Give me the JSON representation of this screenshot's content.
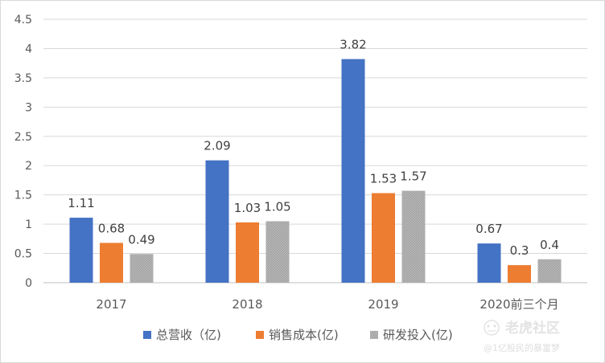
{
  "chart_data": {
    "type": "bar",
    "title": "",
    "xlabel": "",
    "ylabel": "",
    "categories": [
      "2017",
      "2018",
      "2019",
      "2020前三个月"
    ],
    "series": [
      {
        "name": "总营收（亿)",
        "color": "#4472c4",
        "values": [
          1.11,
          2.09,
          3.82,
          0.67
        ],
        "labels": [
          "1.11",
          "2.09",
          "3.82",
          "0.67"
        ]
      },
      {
        "name": "销售成本(亿)",
        "color": "#ed7d31",
        "values": [
          0.68,
          1.03,
          1.53,
          0.3
        ],
        "labels": [
          "0.68",
          "1.03",
          "1.53",
          "0.3"
        ]
      },
      {
        "name": "研发投入(亿)",
        "color": "#a5a5a5",
        "values": [
          0.49,
          1.05,
          1.57,
          0.4
        ],
        "labels": [
          "0.49",
          "1.05",
          "1.57",
          "0.4"
        ]
      }
    ],
    "ylim": [
      0,
      4.5
    ],
    "yticks": [
      "0",
      "0.5",
      "1",
      "1.5",
      "2",
      "2.5",
      "3",
      "3.5",
      "4",
      "4.5"
    ],
    "grid": true,
    "legend_position": "bottom"
  },
  "watermark": {
    "logo_text": "老虎社区",
    "author_text": "@1亿股民的暴富梦"
  }
}
